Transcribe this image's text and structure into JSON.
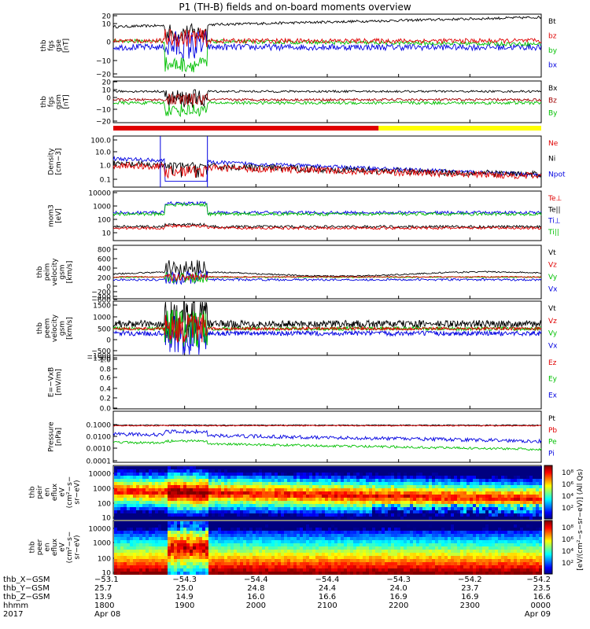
{
  "title": "P1 (TH-B) fields and on-board moments overview",
  "colors": {
    "black": "#000000",
    "red": "#e00000",
    "green": "#00c000",
    "blue": "#0000e0",
    "darkred": "#a00000",
    "yellow": "#ffff00"
  },
  "chart_data": [
    {
      "type": "line",
      "panel_label": [
        "thb",
        "fgs",
        "gse",
        "[nT]"
      ],
      "yticks": [
        "20",
        "10",
        "0",
        "−10",
        "−20"
      ],
      "ylim": [
        -20,
        20
      ],
      "series": [
        {
          "name": "Bt",
          "color": "#000000"
        },
        {
          "name": "bz",
          "color": "#e00000"
        },
        {
          "name": "by",
          "color": "#00c000"
        },
        {
          "name": "bx",
          "color": "#0000e0"
        }
      ]
    },
    {
      "type": "line",
      "panel_label": [
        "thb",
        "fgs",
        "gsm",
        "[nT]"
      ],
      "yticks": [
        "20",
        "10",
        "0",
        "−10",
        "−20"
      ],
      "ylim": [
        -20,
        20
      ],
      "series": [
        {
          "name": "Bx",
          "color": "#000000"
        },
        {
          "name": "Bz",
          "color": "#a00000"
        },
        {
          "name": "By",
          "color": "#00c000"
        }
      ]
    },
    {
      "type": "line",
      "panel_label": [
        "Density",
        "[cm−3]"
      ],
      "yticks": [
        "100.0",
        "10.0",
        "1.0",
        "0.1"
      ],
      "log": true,
      "series": [
        {
          "name": "Ne",
          "color": "#e00000"
        },
        {
          "name": "Ni",
          "color": "#000000"
        },
        {
          "name": "Npot",
          "color": "#0000e0"
        }
      ]
    },
    {
      "type": "line",
      "panel_label": [
        "mom3",
        "[eV]"
      ],
      "yticks": [
        "10000",
        "1000",
        "100",
        "10"
      ],
      "log": true,
      "series": [
        {
          "name": "Te⊥",
          "color": "#e00000"
        },
        {
          "name": "Te||",
          "color": "#000000"
        },
        {
          "name": "Ti⊥",
          "color": "#0000e0"
        },
        {
          "name": "Ti||",
          "color": "#00c000"
        }
      ]
    },
    {
      "type": "line",
      "panel_label": [
        "thb",
        "peim",
        "velocity",
        "gsm",
        "[km/s]"
      ],
      "yticks": [
        "800",
        "600",
        "400",
        "200",
        "0",
        "−200",
        "−400",
        "−600"
      ],
      "ylim": [
        -600,
        800
      ],
      "series": [
        {
          "name": "Vt",
          "color": "#000000"
        },
        {
          "name": "Vz",
          "color": "#e00000"
        },
        {
          "name": "Vy",
          "color": "#00c000"
        },
        {
          "name": "Vx",
          "color": "#0000e0"
        }
      ]
    },
    {
      "type": "line",
      "panel_label": [
        "thb",
        "peem",
        "velocity",
        "gsm",
        "[km/s]"
      ],
      "yticks": [
        "1500",
        "1000",
        "500",
        "0",
        "−500",
        "−1000",
        "−1500"
      ],
      "ylim": [
        -1500,
        1500
      ],
      "series": [
        {
          "name": "Vt",
          "color": "#000000"
        },
        {
          "name": "Vz",
          "color": "#e00000"
        },
        {
          "name": "Vy",
          "color": "#00c000"
        },
        {
          "name": "Vx",
          "color": "#0000e0"
        }
      ]
    },
    {
      "type": "line",
      "panel_label": [
        "E=−VxB",
        "[mV/m]"
      ],
      "yticks": [
        "1.0",
        "0.8",
        "0.6",
        "0.4",
        "0.2",
        "0.0"
      ],
      "ylim": [
        0,
        1
      ],
      "series": [
        {
          "name": "Ez",
          "color": "#e00000"
        },
        {
          "name": "Ey",
          "color": "#00c000"
        },
        {
          "name": "Ex",
          "color": "#0000e0"
        }
      ]
    },
    {
      "type": "line",
      "panel_label": [
        "Pressure",
        "[nPa]"
      ],
      "yticks": [
        "0.1000",
        "0.0100",
        "0.0010",
        "0.0001"
      ],
      "log": true,
      "series": [
        {
          "name": "Pt",
          "color": "#000000"
        },
        {
          "name": "Pb",
          "color": "#e00000"
        },
        {
          "name": "Pe",
          "color": "#00c000"
        },
        {
          "name": "Pi",
          "color": "#0000e0"
        }
      ]
    },
    {
      "type": "heatmap",
      "panel_label": [
        "thb",
        "peir",
        "en",
        "eflux",
        "eV",
        "(cm²−s−",
        "sr−eV)"
      ],
      "yticks": [
        "10000",
        "1000",
        "100",
        "10"
      ],
      "colorbar_ticks": [
        "10⁸",
        "10⁶",
        "10⁴",
        "10²"
      ]
    },
    {
      "type": "heatmap",
      "panel_label": [
        "thb",
        "peer",
        "en",
        "eflux",
        "eV",
        "(cm²−s−",
        "sr−eV)"
      ],
      "yticks": [
        "10000",
        "1000",
        "100",
        "10"
      ],
      "colorbar_ticks": [
        "10⁸",
        "10⁶",
        "10⁴",
        "10²"
      ]
    }
  ],
  "colorbar_label": "[eV/(cm²−s−sr−eV)] (All Qs)",
  "xaxis": {
    "row_labels": [
      "thb_X−GSM",
      "thb_Y−GSM",
      "thb_Z−GSM",
      "hhmm",
      "2017"
    ],
    "columns": [
      {
        "x": "−53.1",
        "y": "25.7",
        "z": "13.9",
        "hhmm": "1800",
        "date": "Apr 08"
      },
      {
        "x": "−54.3",
        "y": "25.0",
        "z": "14.9",
        "hhmm": "1900",
        "date": ""
      },
      {
        "x": "−54.4",
        "y": "24.8",
        "z": "16.0",
        "hhmm": "2000",
        "date": ""
      },
      {
        "x": "−54.4",
        "y": "24.4",
        "z": "16.6",
        "hhmm": "2100",
        "date": ""
      },
      {
        "x": "−54.3",
        "y": "24.0",
        "z": "16.9",
        "hhmm": "2200",
        "date": ""
      },
      {
        "x": "−54.2",
        "y": "23.7",
        "z": "16.9",
        "hhmm": "2300",
        "date": ""
      },
      {
        "x": "−54.2",
        "y": "23.5",
        "z": "16.6",
        "hhmm": "0000",
        "date": "Apr 09"
      }
    ]
  }
}
